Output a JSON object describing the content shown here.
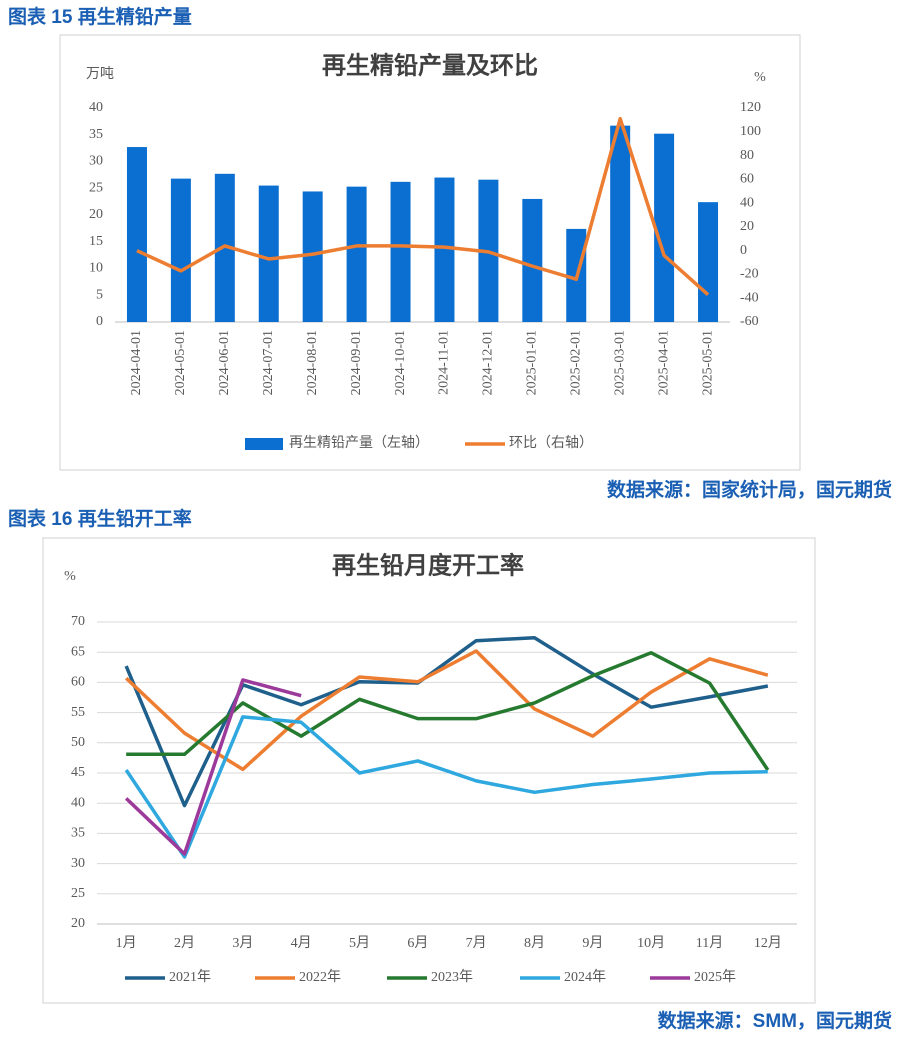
{
  "figures": [
    {
      "caption": "图表 15 再生精铅产量",
      "source": "数据来源：国家统计局，国元期货"
    },
    {
      "caption": "图表 16 再生铅开工率",
      "source": "数据来源：SMM，国元期货"
    }
  ],
  "chart_data": [
    {
      "type": "bar",
      "title": "再生精铅产量及环比",
      "ylabel": "万吨",
      "y2label": "%",
      "categories": [
        "2024-04-01",
        "2024-05-01",
        "2024-06-01",
        "2024-07-01",
        "2024-08-01",
        "2024-09-01",
        "2024-10-01",
        "2024-11-01",
        "2024-12-01",
        "2025-01-01",
        "2025-02-01",
        "2025-03-01",
        "2025-04-01",
        "2025-05-01"
      ],
      "series": [
        {
          "name": "再生精铅产量（左轴）",
          "type": "bar",
          "color": "#0a6fd0",
          "values": [
            32.7,
            26.8,
            27.7,
            25.5,
            24.4,
            25.3,
            26.2,
            27.0,
            26.6,
            23.0,
            17.4,
            36.7,
            35.2,
            22.4
          ]
        },
        {
          "name": "环比（右轴）",
          "type": "line",
          "axis": "y2",
          "color": "#ed7d31",
          "values": [
            0,
            -17,
            4,
            -7,
            -3,
            4,
            4,
            3,
            -1,
            -13,
            -24,
            111,
            -4,
            -37
          ]
        }
      ],
      "ylim": [
        0,
        40
      ],
      "yticks": [
        0,
        5,
        10,
        15,
        20,
        25,
        30,
        35,
        40
      ],
      "y2lim": [
        -60,
        120
      ],
      "y2ticks": [
        -60,
        -40,
        -20,
        0,
        20,
        40,
        60,
        80,
        100,
        120
      ],
      "grid": false,
      "legend": "bottom"
    },
    {
      "type": "line",
      "title": "再生铅月度开工率",
      "ylabel": "%",
      "categories": [
        "1月",
        "2月",
        "3月",
        "4月",
        "5月",
        "6月",
        "7月",
        "8月",
        "9月",
        "10月",
        "11月",
        "12月"
      ],
      "series": [
        {
          "name": "2021年",
          "color": "#1f5f8b",
          "values": [
            62.7,
            39.6,
            59.6,
            56.3,
            60.1,
            59.9,
            66.9,
            67.4,
            61.4,
            55.9,
            57.6,
            59.4
          ]
        },
        {
          "name": "2022年",
          "color": "#ed7d31",
          "values": [
            60.7,
            51.6,
            45.6,
            54.4,
            60.9,
            60.1,
            65.2,
            55.6,
            51.1,
            58.4,
            63.9,
            61.2
          ]
        },
        {
          "name": "2023年",
          "color": "#267a30",
          "values": [
            48.1,
            48.1,
            56.6,
            51.1,
            57.2,
            54.0,
            54.0,
            56.6,
            61.1,
            64.9,
            59.9,
            45.5
          ]
        },
        {
          "name": "2024年",
          "color": "#2ea8df",
          "values": [
            45.5,
            31.1,
            54.3,
            53.4,
            45.0,
            47.0,
            43.7,
            41.8,
            43.1,
            44.0,
            45.0,
            45.2
          ]
        },
        {
          "name": "2025年",
          "color": "#9b3a9b",
          "values": [
            40.8,
            31.6,
            60.4,
            57.8,
            null,
            null,
            null,
            null,
            null,
            null,
            null,
            null
          ]
        }
      ],
      "ylim": [
        20,
        70
      ],
      "yticks": [
        20,
        25,
        30,
        35,
        40,
        45,
        50,
        55,
        60,
        65,
        70
      ],
      "grid": true,
      "legend": "bottom"
    }
  ]
}
